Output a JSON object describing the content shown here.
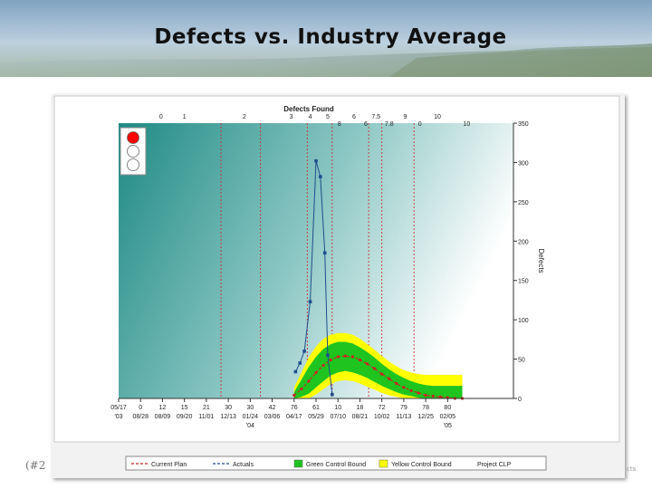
{
  "page": {
    "title": "Defects vs. Industry Average",
    "footer_left": "(#2",
    "footer_right": "cts"
  },
  "colors": {
    "current_plan": "#cc2222",
    "actuals": "#1f4e8c",
    "green_band": "#1fc41f",
    "yellow_band": "#ffff00",
    "gridline": "#cc3333",
    "plot_dark": "#1f8a84",
    "plot_light": "#ffffff",
    "light_on": "#ff0000",
    "light_off": "#ffffff"
  },
  "chart_data": {
    "type": "line",
    "title": "Defects Found",
    "ylabel": "Defects",
    "ylim": [
      0,
      350
    ],
    "yticks": [
      0,
      50,
      100,
      150,
      200,
      250,
      300,
      350
    ],
    "xlim": [
      0,
      27
    ],
    "x_ticks": [
      {
        "x": 0,
        "l1": "05/17",
        "l2": "'03"
      },
      {
        "x": 1.5,
        "l1": "0",
        "l2": "08/28"
      },
      {
        "x": 3,
        "l1": "12",
        "l2": "08/09"
      },
      {
        "x": 4.5,
        "l1": "15",
        "l2": "09/20"
      },
      {
        "x": 6,
        "l1": "21",
        "l2": "11/01"
      },
      {
        "x": 7.5,
        "l1": "30",
        "l2": "12/13"
      },
      {
        "x": 9,
        "l1": "30",
        "l2": "01/24",
        "l3": "'04"
      },
      {
        "x": 10.5,
        "l1": "42",
        "l2": "03/06"
      },
      {
        "x": 12,
        "l1": "76",
        "l2": "04/17"
      },
      {
        "x": 13.5,
        "l1": "61",
        "l2": "05/29"
      },
      {
        "x": 15,
        "l1": "10",
        "l2": "07/10"
      },
      {
        "x": 16.5,
        "l1": "18",
        "l2": "08/21"
      },
      {
        "x": 18,
        "l1": "72",
        "l2": "10/02"
      },
      {
        "x": 19.5,
        "l1": "79",
        "l2": "11/13"
      },
      {
        "x": 21,
        "l1": "78",
        "l2": "12/25"
      },
      {
        "x": 22.5,
        "l1": "80",
        "l2": "02/05",
        "l3": "'05"
      }
    ],
    "top_labels": [
      {
        "x": 2.9,
        "row": 1,
        "text": "0"
      },
      {
        "x": 4.5,
        "row": 1,
        "text": "1"
      },
      {
        "x": 8.6,
        "row": 1,
        "text": "2"
      },
      {
        "x": 11.8,
        "row": 1,
        "text": "3"
      },
      {
        "x": 13.1,
        "row": 1,
        "text": "4"
      },
      {
        "x": 14.3,
        "row": 1,
        "text": "5"
      },
      {
        "x": 16.1,
        "row": 1,
        "text": "6"
      },
      {
        "x": 17.6,
        "row": 1,
        "text": "7.5"
      },
      {
        "x": 19.6,
        "row": 1,
        "text": "9"
      },
      {
        "x": 21.8,
        "row": 1,
        "text": "10"
      },
      {
        "x": 15.1,
        "row": 2,
        "text": "8"
      },
      {
        "x": 16.9,
        "row": 2,
        "text": "6"
      },
      {
        "x": 18.5,
        "row": 2,
        "text": "7.8"
      },
      {
        "x": 20.6,
        "row": 2,
        "text": "0"
      },
      {
        "x": 23.8,
        "row": 2,
        "text": "10"
      }
    ],
    "gridlines_x": [
      7.0,
      9.7,
      12.9,
      14.6,
      17.1,
      18.0,
      20.2
    ],
    "series": [
      {
        "name": "Current Plan",
        "x": [
          12.0,
          12.5,
          13.0,
          13.5,
          14.0,
          14.5,
          15.0,
          15.5,
          16.0,
          16.5,
          17.0,
          17.5,
          18.0,
          18.5,
          19.0,
          19.5,
          20.0,
          20.5,
          21.0,
          21.5,
          22.0,
          22.5,
          23.0,
          23.5
        ],
        "values": [
          4,
          12,
          22,
          33,
          42,
          49,
          53,
          54,
          53,
          49,
          44,
          38,
          31,
          25,
          19,
          14,
          10,
          7,
          4,
          3,
          2,
          1,
          0,
          0
        ]
      },
      {
        "name": "Actuals",
        "x": [
          12.1,
          12.4,
          12.7,
          13.1,
          13.5,
          13.8,
          14.1,
          14.3,
          14.6
        ],
        "values": [
          34,
          45,
          60,
          123,
          302,
          282,
          185,
          55,
          5
        ]
      }
    ],
    "bands": [
      {
        "name": "Yellow Control Bound",
        "x": [
          12.0,
          12.5,
          13.0,
          13.5,
          14.0,
          14.5,
          15.0,
          15.5,
          16.0,
          16.5,
          17.0,
          17.5,
          18.0,
          18.5,
          19.0,
          19.5,
          20.0,
          20.5,
          21.0,
          21.5,
          22.0,
          22.5,
          23.0,
          23.5
        ],
        "upper": [
          14,
          33,
          52,
          66,
          76,
          81,
          83,
          83,
          81,
          76,
          69,
          62,
          54,
          47,
          41,
          36,
          33,
          31,
          30,
          30,
          30,
          30,
          30,
          30
        ],
        "lower": [
          0,
          0,
          0,
          5,
          12,
          18,
          22,
          23,
          22,
          19,
          15,
          11,
          7,
          4,
          2,
          0,
          0,
          0,
          0,
          0,
          0,
          0,
          0,
          0
        ]
      },
      {
        "name": "Green Control Bound",
        "x": [
          12.0,
          12.5,
          13.0,
          13.5,
          14.0,
          14.5,
          15.0,
          15.5,
          16.0,
          16.5,
          17.0,
          17.5,
          18.0,
          18.5,
          19.0,
          19.5,
          20.0,
          20.5,
          21.0,
          21.5,
          22.0,
          22.5,
          23.0,
          23.5
        ],
        "upper": [
          8,
          24,
          40,
          53,
          63,
          69,
          72,
          72,
          70,
          65,
          59,
          52,
          44,
          37,
          31,
          26,
          22,
          19,
          17,
          16,
          16,
          16,
          16,
          16
        ],
        "lower": [
          0,
          2,
          6,
          14,
          22,
          29,
          33,
          35,
          33,
          30,
          26,
          21,
          16,
          12,
          8,
          5,
          3,
          1,
          0,
          0,
          0,
          0,
          0,
          0
        ]
      }
    ],
    "legend": {
      "position": "bottom",
      "items": [
        {
          "label": "Current Plan",
          "kind": "dashline",
          "color": "#cc2222"
        },
        {
          "label": "Actuals",
          "kind": "dashline",
          "color": "#1f4e8c"
        },
        {
          "label": "Green Control Bound",
          "kind": "swatch",
          "color": "#1fc41f"
        },
        {
          "label": "Yellow Control Bound",
          "kind": "swatch",
          "color": "#ffff00"
        },
        {
          "label": "Project CLP",
          "kind": "none",
          "color": "#333333"
        }
      ]
    },
    "traffic_light": [
      "red",
      "off",
      "off"
    ],
    "grid": false
  }
}
